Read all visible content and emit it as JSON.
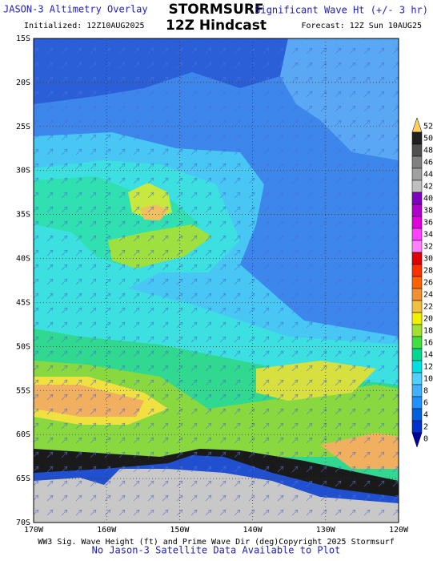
{
  "header": {
    "left_title": "JASON-3 Altimetry Overlay",
    "brand": "STORMSURF",
    "right_title": "Significant Wave Ht (+/- 3 hr)",
    "initialized": "Initialized: 12Z10AUG2025",
    "subtitle": "12Z Hindcast",
    "forecast": "Forecast: 12Z Sun 10AUG25"
  },
  "map": {
    "lat_labels": [
      "15S",
      "20S",
      "25S",
      "30S",
      "35S",
      "40S",
      "45S",
      "50S",
      "55S",
      "60S",
      "65S",
      "70S"
    ],
    "lon_labels": [
      "170W",
      "160W",
      "150W",
      "140W",
      "130W",
      "120W"
    ]
  },
  "colorbar": {
    "labels": [
      "52",
      "50",
      "48",
      "46",
      "44",
      "42",
      "40",
      "38",
      "36",
      "34",
      "32",
      "30",
      "28",
      "26",
      "24",
      "22",
      "20",
      "18",
      "16",
      "14",
      "12",
      "10",
      "8",
      "6",
      "4",
      "2",
      "0"
    ]
  },
  "footer": {
    "caption": "WW3 Sig. Wave Height (ft) and Prime Wave Dir (deg)Copyright 2025 Stormsurf",
    "note": "No Jason-3 Satellite Data Available to Plot"
  }
}
